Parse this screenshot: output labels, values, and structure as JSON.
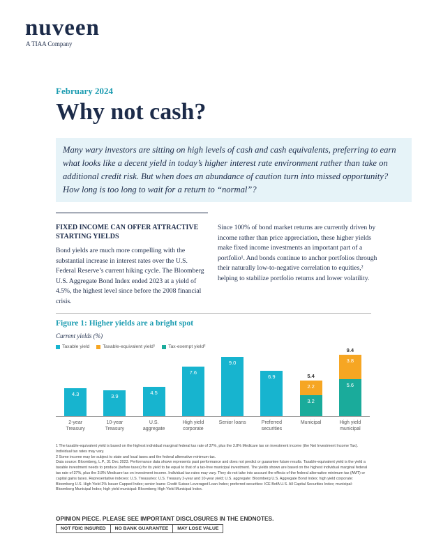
{
  "header": {
    "brand": "nuveen",
    "tagline": "A TIAA Company"
  },
  "date": "February 2024",
  "title": "Why not cash?",
  "intro": "Many wary investors are sitting on high levels of cash and cash equivalents, preferring to earn what looks like a decent yield in today’s higher interest rate environment rather than take on additional credit risk. But when does an abundance of caution turn into missed opportunity? How long is too long to wait for a return to “normal”?",
  "left": {
    "heading": "FIXED INCOME CAN OFFER ATTRACTIVE STARTING YIELDS",
    "body": "Bond yields are much more compelling with the substantial increase in interest rates over the U.S. Federal Reserve’s current hiking cycle. The Bloomberg U.S. Aggregate Bond Index ended 2023 at a yield of 4.5%, the highest level since before the 2008 financial crisis."
  },
  "right": {
    "body": "Since 100% of bond market returns are currently driven by income rather than price appreciation, these higher yields make fixed income investments an important part of a portfolio¹. And bonds continue to anchor portfolios through their naturally low-to-negative correlation to equities,² helping to stabilize portfolio returns and lower volatility."
  },
  "chart_data": {
    "type": "bar",
    "title": "Figure 1: Higher yields are a bright spot",
    "subtitle": "Current yields (%)",
    "categories": [
      "2-year Treasury",
      "10-year Treasury",
      "U.S. aggregate",
      "High yield corporate",
      "Senior loans",
      "Preferred securities",
      "Municipal",
      "High yield municipal"
    ],
    "series": [
      {
        "name": "Taxable yield",
        "color": "#17b4cf",
        "values": [
          4.3,
          3.9,
          4.5,
          7.6,
          9.0,
          6.9,
          null,
          null
        ],
        "value_labels": [
          "4.3",
          "3.9",
          "4.5",
          "7.6",
          "9.0",
          "6.9",
          null,
          null
        ]
      },
      {
        "name": "Taxable-equivalent yield¹",
        "color": "#f6a623",
        "values": [
          null,
          null,
          null,
          null,
          null,
          null,
          2.2,
          3.8
        ],
        "value_labels": [
          null,
          null,
          null,
          null,
          null,
          null,
          "2.2",
          "3.8"
        ]
      },
      {
        "name": "Tax-exempt yield²",
        "color": "#1aab9b",
        "values": [
          null,
          null,
          null,
          null,
          null,
          null,
          3.2,
          5.6
        ],
        "value_labels": [
          null,
          null,
          null,
          null,
          null,
          null,
          "3.2",
          "5.6"
        ]
      }
    ],
    "totals": [
      null,
      null,
      null,
      null,
      null,
      null,
      5.4,
      9.4
    ],
    "ylim": [
      0,
      10
    ],
    "legend": "top-left"
  },
  "footnotes": [
    "1 The taxable-equivalent yield is based on the highest individual marginal federal tax rate of 37%, plus the 3.8% Medicare tax on investment income (the Net Investment Income Tax). Individual tax rates may vary.",
    "2 Some income may be subject to state and local taxes and the federal alternative minimum tax.",
    "Data source: Bloomberg, L.P., 31 Dec 2023. Performance data shown represents past performance and does not predict or guarantee future results. Taxable-equivalent yield is the yield a taxable investment needs to produce (before taxes) for its yield to be equal to that of a tax-free municipal investment. The yields shown are based on the highest individual marginal federal tax rate of 37%, plus the 3.8% Medicare tax on investment income. Individual tax rates may vary. They do not take into account the effects of the federal alternative minimum tax (AMT) or capital gains taxes. Representative indexes: U.S. Treasuries: U.S. Treasury 2-year and 10-year yield; U.S. aggregate: Bloomberg U.S. Aggregate Bond Index; high yield corporate: Bloomberg U.S. High Yield 2% Issuer Capped Index; senior loans: Credit Suisse Leveraged Loan Index; preferred securities: ICE BofA U.S. All Capital Securities Index; municipal: Bloomberg Municipal Index; high yield municipal: Bloomberg High Yield Municipal Index."
  ],
  "disclaimer": "OPINION PIECE. PLEASE SEE IMPORTANT DISCLOSURES IN THE ENDNOTES.",
  "badges": [
    "NOT FDIC INSURED",
    "NO BANK GUARANTEE",
    "MAY LOSE VALUE"
  ]
}
